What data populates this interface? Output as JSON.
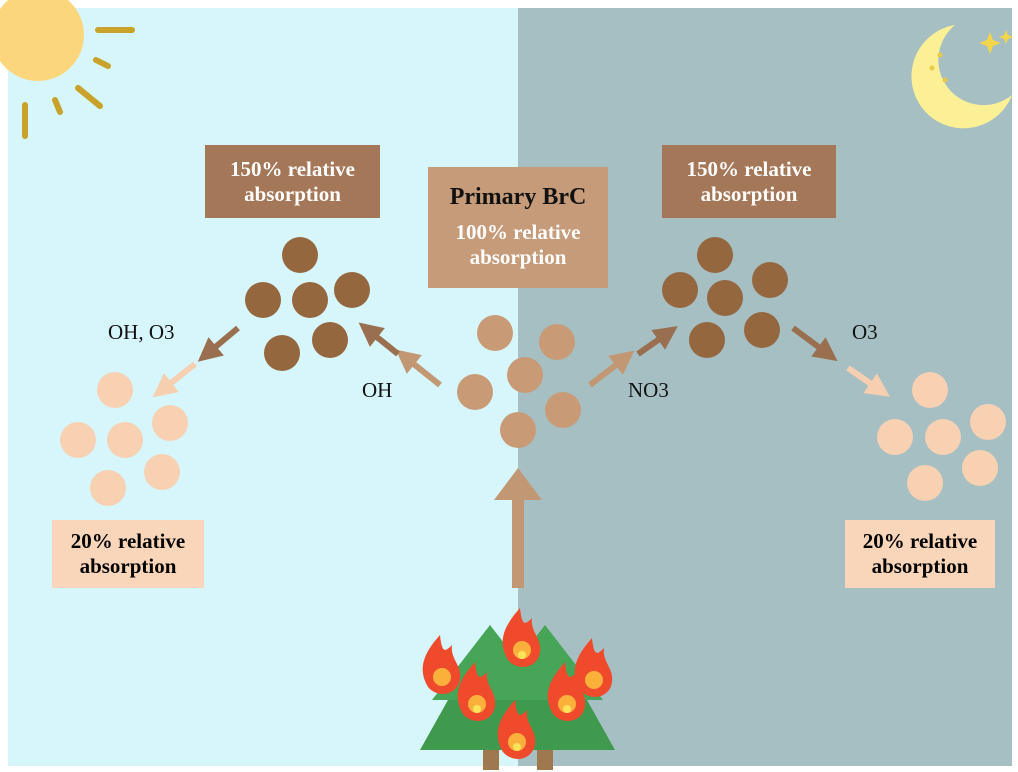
{
  "primary": {
    "title": "Primary BrC",
    "absorption": "100% relative absorption"
  },
  "day": {
    "aged_label": "150% relative absorption",
    "bleached_label": "20% relative absorption",
    "aging_oxidant": "OH",
    "bleaching_oxidants": "OH, O3"
  },
  "night": {
    "aged_label": "150% relative absorption",
    "bleached_label": "20% relative absorption",
    "aging_oxidant": "NO3",
    "bleaching_oxidant": "O3"
  }
}
